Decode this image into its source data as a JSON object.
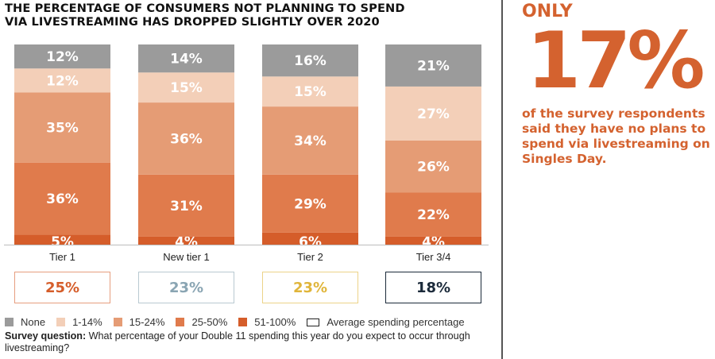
{
  "title_lines": [
    "THE PERCENTAGE OF CONSUMERS NOT PLANNING TO SPEND",
    "VIA LIVESTREAMING HAS DROPPED SLIGHTLY OVER 2020"
  ],
  "chart_data": {
    "type": "bar",
    "stacked": true,
    "orientation": "vertical",
    "normalized_to": 100,
    "title": "THE PERCENTAGE OF CONSUMERS NOT PLANNING TO SPEND VIA LIVESTREAMING HAS DROPPED SLIGHTLY OVER 2020",
    "xlabel": "",
    "ylabel": "",
    "ylim": [
      0,
      100
    ],
    "grid": false,
    "categories": [
      "Tier 1",
      "New tier 1",
      "Tier 2",
      "Tier 3/4"
    ],
    "series": [
      {
        "name": "51-100%",
        "color": "#d55d2a",
        "values": [
          5,
          4,
          6,
          4
        ]
      },
      {
        "name": "25-50%",
        "color": "#e07b4c",
        "values": [
          36,
          31,
          29,
          22
        ]
      },
      {
        "name": "15-24%",
        "color": "#e59c75",
        "values": [
          35,
          36,
          34,
          26
        ]
      },
      {
        "name": "1-14%",
        "color": "#f3cfb8",
        "values": [
          12,
          15,
          15,
          27
        ]
      },
      {
        "name": "None",
        "color": "#9b9b9b",
        "values": [
          12,
          14,
          16,
          21
        ]
      }
    ],
    "average_spending_percentage": {
      "label": "Average spending percentage",
      "values": [
        "25%",
        "23%",
        "23%",
        "18%"
      ],
      "colors": [
        "#d55d2a",
        "#8aa5b3",
        "#e0b53a",
        "#1b2a3a"
      ]
    },
    "legend": {
      "placement": "bottom",
      "entries": [
        "None",
        "1-14%",
        "15-24%",
        "25-50%",
        "51-100%",
        "Average spending percentage"
      ]
    }
  },
  "legend_items": [
    {
      "label": "None",
      "color": "#9b9b9b"
    },
    {
      "label": "1-14%",
      "color": "#f3cfb8"
    },
    {
      "label": "15-24%",
      "color": "#e59c75"
    },
    {
      "label": "25-50%",
      "color": "#e07b4c"
    },
    {
      "label": "51-100%",
      "color": "#d55d2a"
    },
    {
      "label": "Average spending percentage",
      "color": "outline"
    }
  ],
  "survey": {
    "label": "Survey question:",
    "text": " What percentage of your Double 11 spending this year do you expect to occur through livestreaming?"
  },
  "callout": {
    "prefix": "ONLY",
    "value": "17%",
    "description": "of the survey respondents said they have no plans to spend via livestreaming on Singles Day.",
    "color": "#d4622f"
  }
}
